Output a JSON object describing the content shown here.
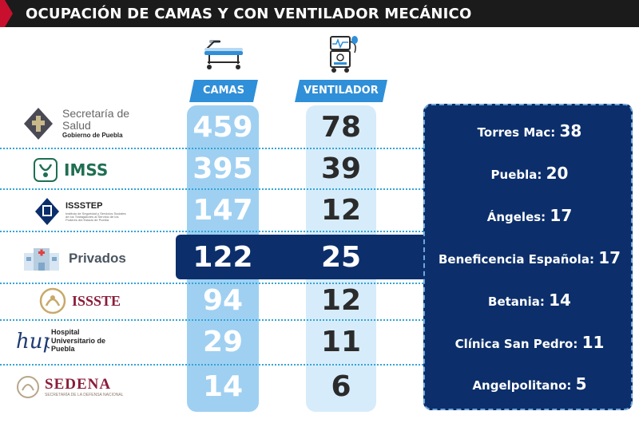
{
  "title": "OCUPACIÓN DE CAMAS Y CON VENTILADOR MECÁNICO",
  "columns": {
    "camas": "CAMAS",
    "ventilador": "VENTILADOR"
  },
  "rows": [
    {
      "institution": "Secretaría de Salud",
      "institution_sub": "Gobierno de Puebla",
      "camas": "459",
      "ventilador": "78"
    },
    {
      "institution": "IMSS",
      "camas": "395",
      "ventilador": "39"
    },
    {
      "institution": "ISSSTEP",
      "institution_sub": "Instituto de Seguridad y Servicios Sociales de los Trabajadores al Servicio de los Poderes del Estado de Puebla",
      "camas": "147",
      "ventilador": "12"
    },
    {
      "institution": "Privados",
      "camas": "122",
      "ventilador": "25"
    },
    {
      "institution": "ISSSTE",
      "camas": "94",
      "ventilador": "12"
    },
    {
      "institution": "Hospital Universitario de Puebla",
      "camas": "29",
      "ventilador": "11"
    },
    {
      "institution": "SEDENA",
      "institution_sub": "SECRETARÍA DE LA DEFENSA NACIONAL",
      "camas": "14",
      "ventilador": "6"
    }
  ],
  "private_hospitals": [
    {
      "name": "Torres Mac:",
      "value": "38"
    },
    {
      "name": "Puebla:",
      "value": "20"
    },
    {
      "name": "Ángeles:",
      "value": "17"
    },
    {
      "name": "Beneficencia Española:",
      "value": "17"
    },
    {
      "name": "Betania:",
      "value": "14"
    },
    {
      "name": "Clínica San Pedro:",
      "value": "11"
    },
    {
      "name": "Angelpolitano:",
      "value": "5"
    }
  ],
  "colors": {
    "title_bg": "#1b1b1b",
    "accent_red": "#c8102e",
    "header_blue": "#2f8fd8",
    "camas_bg": "#9fd0f2",
    "vent_bg": "#d7ecfa",
    "navy": "#0c2f6b"
  },
  "icons": {
    "camas": "stretcher-icon",
    "ventilador": "ventilator-icon"
  }
}
